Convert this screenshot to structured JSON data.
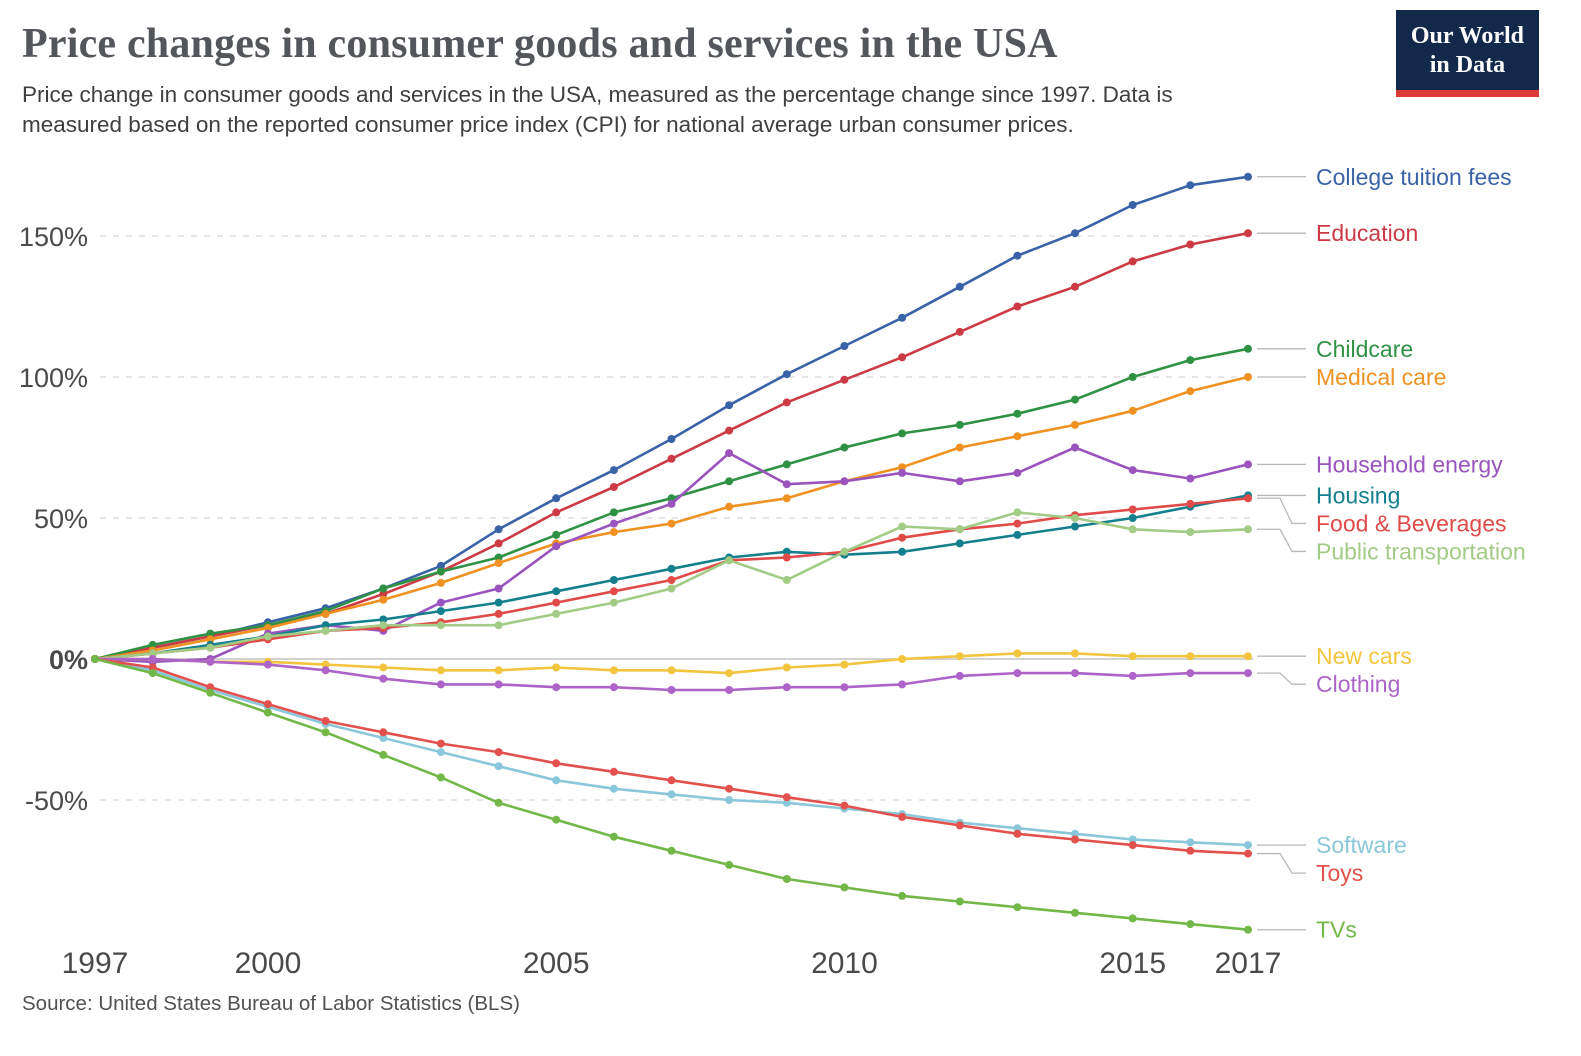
{
  "header": {
    "title": "Price changes in consumer goods and services in the USA",
    "subtitle": "Price change in consumer goods and services in the USA, measured as the percentage change since 1997. Data is measured based on the reported consumer price index (CPI) for national average urban consumer prices."
  },
  "logo": {
    "line1": "Our World",
    "line2": "in Data",
    "bg": "#12294b",
    "bar_color": "#dc3a34"
  },
  "footer": {
    "source": "Source: United States Bureau of Labor Statistics (BLS)"
  },
  "chart_data": {
    "type": "line",
    "title": "Price changes in consumer goods and services in the USA",
    "unit": "%",
    "x": [
      1997,
      1998,
      1999,
      2000,
      2001,
      2002,
      2003,
      2004,
      2005,
      2006,
      2007,
      2008,
      2009,
      2010,
      2011,
      2012,
      2013,
      2014,
      2015,
      2016,
      2017
    ],
    "xticks": [
      1997,
      2000,
      2005,
      2010,
      2015,
      2017
    ],
    "yticks": [
      {
        "value": 150,
        "label": "150%"
      },
      {
        "value": 100,
        "label": "100%"
      },
      {
        "value": 50,
        "label": "50%"
      },
      {
        "value": 0,
        "label": "0%"
      },
      {
        "value": -50,
        "label": "-50%"
      }
    ],
    "ylim": [
      -100,
      175
    ],
    "grid": "dashed-horizontal",
    "legend_position": "right-edge-labels",
    "series": [
      {
        "name": "College tuition fees",
        "color": "#3a62a7",
        "values": [
          0,
          4,
          8,
          13,
          18,
          25,
          33,
          46,
          57,
          67,
          78,
          90,
          101,
          111,
          121,
          132,
          143,
          151,
          161,
          168,
          171
        ]
      },
      {
        "name": "Education",
        "color": "#cc3b45",
        "values": [
          0,
          4,
          8,
          12,
          16,
          23,
          31,
          41,
          52,
          61,
          71,
          81,
          91,
          99,
          107,
          116,
          125,
          132,
          141,
          147,
          151
        ]
      },
      {
        "name": "Childcare",
        "color": "#2f9144",
        "values": [
          0,
          5,
          9,
          12,
          17,
          25,
          31,
          36,
          44,
          52,
          57,
          63,
          69,
          75,
          80,
          83,
          87,
          92,
          100,
          106,
          110
        ]
      },
      {
        "name": "Medical care",
        "color": "#ef9221",
        "values": [
          0,
          3,
          7,
          11,
          16,
          21,
          27,
          34,
          41,
          45,
          48,
          54,
          57,
          63,
          68,
          75,
          79,
          83,
          88,
          95,
          100
        ]
      },
      {
        "name": "Household energy",
        "color": "#9955bd",
        "values": [
          0,
          -1,
          0,
          9,
          12,
          10,
          20,
          25,
          40,
          48,
          55,
          73,
          62,
          63,
          66,
          63,
          66,
          75,
          67,
          64,
          69
        ]
      },
      {
        "name": "Housing",
        "color": "#15808d",
        "values": [
          0,
          2,
          5,
          8,
          12,
          14,
          17,
          20,
          24,
          28,
          32,
          36,
          38,
          37,
          38,
          41,
          44,
          47,
          50,
          54,
          58
        ]
      },
      {
        "name": "Food & Beverages",
        "color": "#e04a49",
        "values": [
          0,
          2,
          4,
          7,
          10,
          11,
          13,
          16,
          20,
          24,
          28,
          35,
          36,
          38,
          43,
          46,
          48,
          51,
          53,
          55,
          57
        ]
      },
      {
        "name": "Public transportation",
        "color": "#a2cb85",
        "values": [
          0,
          2,
          4,
          8,
          10,
          12,
          12,
          12,
          16,
          20,
          25,
          35,
          28,
          38,
          47,
          46,
          52,
          50,
          46,
          45,
          46
        ]
      },
      {
        "name": "New cars",
        "color": "#f3c53e",
        "values": [
          0,
          0,
          -1,
          -1,
          -2,
          -3,
          -4,
          -4,
          -3,
          -4,
          -4,
          -5,
          -3,
          -2,
          0,
          1,
          2,
          2,
          1,
          1,
          1
        ]
      },
      {
        "name": "Clothing",
        "color": "#ad64c8",
        "values": [
          0,
          0,
          -1,
          -2,
          -4,
          -7,
          -9,
          -9,
          -10,
          -10,
          -11,
          -11,
          -10,
          -10,
          -9,
          -6,
          -5,
          -5,
          -6,
          -5,
          -5
        ]
      },
      {
        "name": "Software",
        "color": "#8bc7da",
        "values": [
          0,
          -4,
          -11,
          -17,
          -23,
          -28,
          -33,
          -38,
          -43,
          -46,
          -48,
          -50,
          -51,
          -53,
          -55,
          -58,
          -60,
          -62,
          -64,
          -65,
          -66
        ]
      },
      {
        "name": "Toys",
        "color": "#e2514d",
        "values": [
          0,
          -3,
          -10,
          -16,
          -22,
          -26,
          -30,
          -33,
          -37,
          -40,
          -43,
          -46,
          -49,
          -52,
          -56,
          -59,
          -62,
          -64,
          -66,
          -68,
          -69
        ]
      },
      {
        "name": "TVs",
        "color": "#73b748",
        "values": [
          0,
          -5,
          -12,
          -19,
          -26,
          -34,
          -42,
          -51,
          -57,
          -63,
          -68,
          -73,
          -78,
          -81,
          -84,
          -86,
          -88,
          -90,
          -92,
          -94,
          -96
        ]
      }
    ]
  }
}
